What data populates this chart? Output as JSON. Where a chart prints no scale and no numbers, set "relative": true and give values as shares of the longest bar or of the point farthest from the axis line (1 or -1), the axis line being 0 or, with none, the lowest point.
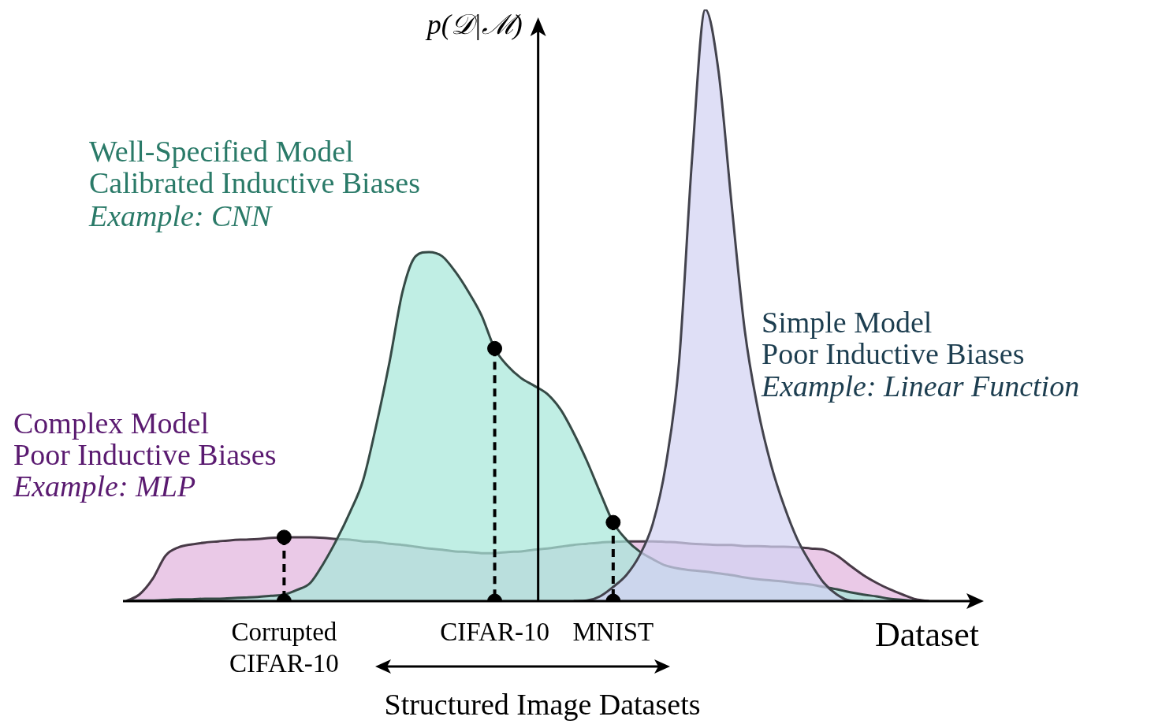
{
  "chart_data": {
    "type": "area",
    "relative": true,
    "grid": false,
    "legend": false,
    "ylabel": "p(𝒟|ℳ)",
    "xlabel": "Dataset",
    "categories": [
      null,
      null,
      null,
      null,
      null,
      null,
      null,
      null,
      null,
      null,
      null,
      null,
      "Corrupted CIFAR-10",
      null,
      null,
      null,
      null,
      null,
      null,
      null,
      null,
      null,
      null,
      null,
      null,
      null,
      null,
      null,
      "CIFAR-10",
      null,
      null,
      null,
      null,
      null,
      null,
      null,
      null,
      "MNIST",
      null,
      null,
      null,
      null,
      null,
      null,
      null,
      null,
      null,
      null,
      null,
      null,
      null,
      null,
      null,
      null,
      null,
      null,
      null,
      null,
      null,
      null,
      null,
      null,
      null,
      null
    ],
    "series": [
      {
        "color": "#e2b4de",
        "values": [
          0,
          0.011,
          0.037,
          0.077,
          0.091,
          0.096,
          0.099,
          0.101,
          0.103,
          0.104,
          0.105,
          0.107,
          0.108,
          0.108,
          0.108,
          0.107,
          0.105,
          0.104,
          0.101,
          0.1,
          0.097,
          0.095,
          0.092,
          0.089,
          0.087,
          0.084,
          0.083,
          0.081,
          0.081,
          0.083,
          0.084,
          0.087,
          0.089,
          0.092,
          0.095,
          0.097,
          0.099,
          0.1,
          0.101,
          0.101,
          0.101,
          0.1,
          0.099,
          0.097,
          0.096,
          0.095,
          0.095,
          0.093,
          0.093,
          0.092,
          0.092,
          0.091,
          0.089,
          0.087,
          0.077,
          0.06,
          0.044,
          0.031,
          0.02,
          0.011,
          0.003,
          0,
          null,
          null
        ]
      },
      {
        "color": "#a8e8da",
        "values": [
          0,
          0.001,
          0.001,
          0.002,
          0.003,
          0.003,
          0.004,
          0.004,
          0.005,
          0.006,
          0.007,
          0.009,
          0.011,
          0.019,
          0.031,
          0.064,
          0.104,
          0.15,
          0.204,
          0.297,
          0.403,
          0.523,
          0.583,
          0.59,
          0.583,
          0.557,
          0.523,
          0.483,
          0.427,
          0.397,
          0.377,
          0.364,
          0.35,
          0.324,
          0.284,
          0.237,
          0.184,
          0.133,
          0.104,
          0.084,
          0.071,
          0.06,
          0.055,
          0.052,
          0.05,
          0.047,
          0.044,
          0.04,
          0.037,
          0.035,
          0.033,
          0.03,
          0.028,
          0.024,
          0.02,
          0.015,
          0.011,
          0.008,
          0.004,
          0.002,
          0,
          null,
          null,
          null
        ]
      },
      {
        "color": "#d2d2f2",
        "values": [
          null,
          null,
          null,
          null,
          null,
          null,
          null,
          null,
          null,
          null,
          null,
          null,
          null,
          null,
          null,
          null,
          null,
          null,
          null,
          null,
          null,
          null,
          null,
          null,
          null,
          null,
          null,
          null,
          null,
          null,
          null,
          null,
          null,
          null,
          0,
          0.001,
          0.008,
          0.024,
          0.044,
          0.077,
          0.13,
          0.23,
          0.403,
          0.75,
          1,
          0.896,
          0.67,
          0.457,
          0.324,
          0.23,
          0.16,
          0.104,
          0.064,
          0.031,
          0.011,
          0.001,
          0,
          null,
          null,
          null,
          null,
          null,
          null,
          null
        ]
      },
      {
        "type": "lollipop",
        "color": "#000000",
        "line_style": "dashed",
        "marker": "circle",
        "values": [
          null,
          null,
          null,
          null,
          null,
          null,
          null,
          null,
          null,
          null,
          null,
          null,
          0.108,
          null,
          null,
          null,
          null,
          null,
          null,
          null,
          null,
          null,
          null,
          null,
          null,
          null,
          null,
          null,
          0.427,
          null,
          null,
          null,
          null,
          null,
          null,
          null,
          null,
          0.133,
          null,
          null,
          null,
          null,
          null,
          null,
          null,
          null,
          null,
          null,
          null,
          null,
          null,
          null,
          null,
          null,
          null,
          null,
          null,
          null,
          null,
          null,
          null,
          null,
          null,
          null
        ]
      },
      {
        "type": "scatter",
        "color": "#000000",
        "marker": "circle",
        "values": [
          null,
          null,
          null,
          null,
          null,
          null,
          null,
          null,
          null,
          null,
          null,
          null,
          0,
          null,
          null,
          null,
          null,
          null,
          null,
          null,
          null,
          null,
          null,
          null,
          null,
          null,
          null,
          null,
          0,
          null,
          null,
          null,
          null,
          null,
          null,
          null,
          null,
          0,
          null,
          null,
          null,
          null,
          null,
          null,
          null,
          null,
          null,
          null,
          null,
          null,
          null,
          null,
          null,
          null,
          null,
          null,
          null,
          null,
          null,
          null,
          null,
          null,
          null,
          null
        ]
      }
    ],
    "annotations": [
      "Well-Specified Model",
      "Calibrated Inductive Biases",
      "Example: CNN",
      "Simple Model",
      "Poor Inductive Biases",
      "Example: Linear Function",
      "Complex Model",
      "Poor Inductive Biases",
      "Example: MLP",
      "Structured Image Datasets"
    ]
  }
}
